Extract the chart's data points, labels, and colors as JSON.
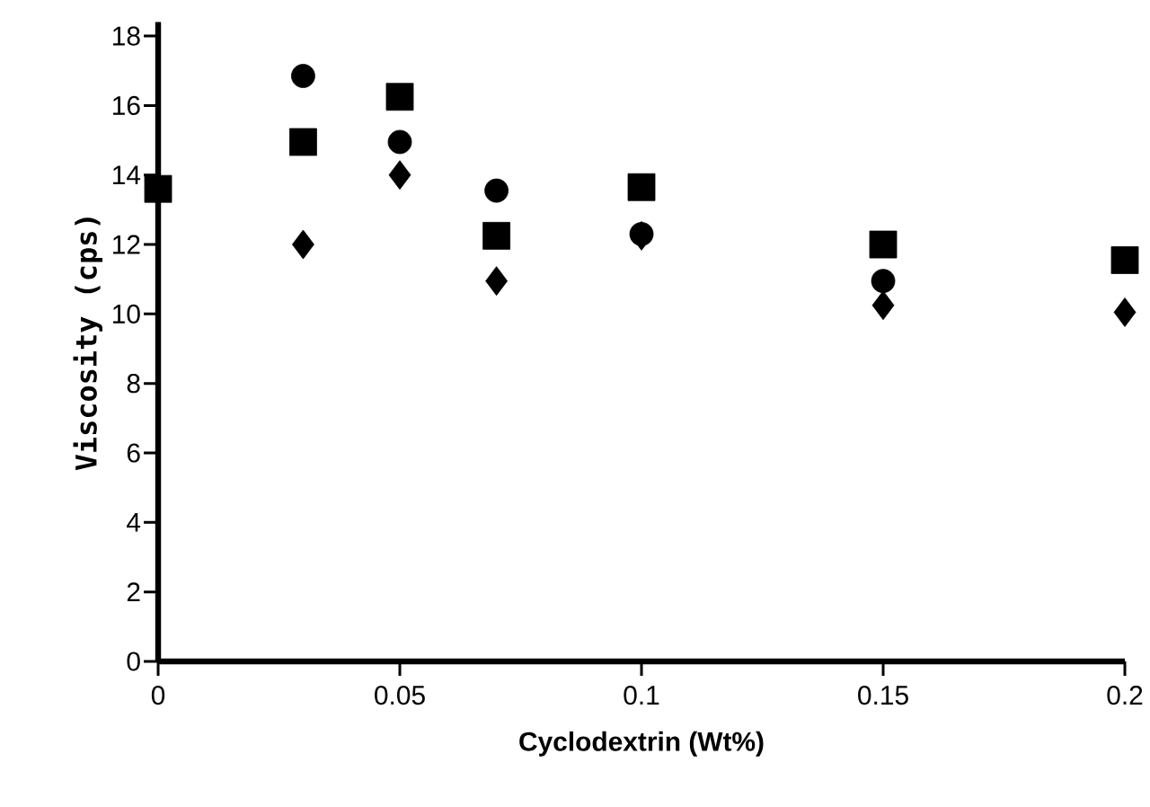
{
  "chart_data": {
    "type": "scatter",
    "xlabel": "Cyclodextrin (Wt%)",
    "ylabel": "Viscosity (cps)",
    "xlim": [
      0,
      0.2
    ],
    "ylim": [
      0,
      18.4
    ],
    "xticks": [
      0,
      0.05,
      0.1,
      0.15,
      0.2
    ],
    "yticks": [
      0,
      2,
      4,
      6,
      8,
      10,
      12,
      14,
      16,
      18
    ],
    "series": [
      {
        "color": "#000000",
        "marker": "square",
        "x": [
          0,
          0.03,
          0.05,
          0.07,
          0.1,
          0.15,
          0.2
        ],
        "values": [
          13.6,
          14.95,
          16.25,
          12.25,
          13.65,
          12.0,
          11.55
        ]
      },
      {
        "color": "#000000",
        "marker": "circle",
        "x": [
          0.03,
          0.05,
          0.07,
          0.1,
          0.15
        ],
        "values": [
          16.85,
          14.95,
          13.55,
          12.3,
          10.95
        ]
      },
      {
        "color": "#000000",
        "marker": "diamond",
        "x": [
          0.03,
          0.05,
          0.07,
          0.1,
          0.15,
          0.2
        ],
        "values": [
          12.0,
          14.0,
          10.95,
          12.25,
          10.25,
          10.05
        ]
      }
    ]
  }
}
